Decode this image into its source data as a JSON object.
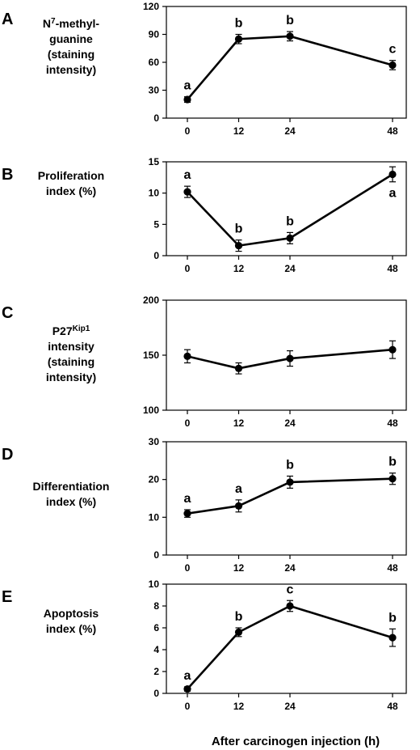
{
  "chart_data": [
    {
      "type": "line",
      "panel": "A",
      "ylabel_lines": [
        {
          "main": "N",
          "sup": "7",
          "rest": "-methyl-"
        },
        {
          "main": "guanine"
        },
        {
          "main": "(staining"
        },
        {
          "main": "intensity)"
        }
      ],
      "x": [
        0,
        12,
        24,
        48
      ],
      "x_tick_labels": [
        "0",
        "12",
        "24",
        "48"
      ],
      "ylim": [
        0,
        120
      ],
      "y_ticks": [
        0,
        30,
        60,
        90,
        120
      ],
      "values": [
        20,
        85,
        88,
        57
      ],
      "errors": [
        3,
        5,
        5,
        5
      ],
      "significance": [
        "a",
        "b",
        "b",
        "c"
      ],
      "sig_position": [
        "above",
        "above",
        "above",
        "above"
      ]
    },
    {
      "type": "line",
      "panel": "B",
      "ylabel_lines": [
        {
          "main": "Proliferation"
        },
        {
          "main": "index (%)"
        }
      ],
      "x": [
        0,
        12,
        24,
        48
      ],
      "x_tick_labels": [
        "0",
        "12",
        "24",
        "48"
      ],
      "ylim": [
        0,
        15
      ],
      "y_ticks": [
        0,
        5,
        10,
        15
      ],
      "values": [
        10.2,
        1.6,
        2.8,
        13
      ],
      "errors": [
        0.9,
        0.9,
        0.9,
        1.2
      ],
      "significance": [
        "a",
        "b",
        "b",
        "a"
      ],
      "sig_position": [
        "above",
        "above",
        "above",
        "below"
      ]
    },
    {
      "type": "line",
      "panel": "C",
      "ylabel_lines": [
        {
          "main": "P27",
          "sup": "Kip1"
        },
        {
          "main": "intensity"
        },
        {
          "main": "(staining"
        },
        {
          "main": "intensity)"
        }
      ],
      "x": [
        0,
        12,
        24,
        48
      ],
      "x_tick_labels": [
        "0",
        "12",
        "24",
        "48"
      ],
      "ylim": [
        100,
        200
      ],
      "y_ticks": [
        100,
        150,
        200
      ],
      "values": [
        149,
        138,
        147,
        155
      ],
      "errors": [
        6,
        5,
        7,
        8
      ],
      "significance": [],
      "sig_position": []
    },
    {
      "type": "line",
      "panel": "D",
      "ylabel_lines": [
        {
          "main": "Differentiation"
        },
        {
          "main": "index (%)"
        }
      ],
      "x": [
        0,
        12,
        24,
        48
      ],
      "x_tick_labels": [
        "0",
        "12",
        "24",
        "48"
      ],
      "ylim": [
        0,
        30
      ],
      "y_ticks": [
        0,
        10,
        20,
        30
      ],
      "values": [
        11,
        13,
        19.3,
        20.2
      ],
      "errors": [
        1,
        1.6,
        1.6,
        1.5
      ],
      "significance": [
        "a",
        "a",
        "b",
        "b"
      ],
      "sig_position": [
        "above",
        "above",
        "above",
        "above"
      ]
    },
    {
      "type": "line",
      "panel": "E",
      "ylabel_lines": [
        {
          "main": "Apoptosis"
        },
        {
          "main": "index (%)"
        }
      ],
      "x": [
        0,
        12,
        24,
        48
      ],
      "x_tick_labels": [
        "0",
        "12",
        "24",
        "48"
      ],
      "ylim": [
        0,
        10
      ],
      "y_ticks": [
        0,
        2,
        4,
        6,
        8,
        10
      ],
      "values": [
        0.4,
        5.6,
        8.0,
        5.1
      ],
      "errors": [
        0.2,
        0.4,
        0.5,
        0.8
      ],
      "significance": [
        "a",
        "b",
        "c",
        "b"
      ],
      "sig_position": [
        "above",
        "above",
        "above",
        "above"
      ]
    }
  ],
  "xlabel": "After carcinogen injection (h)",
  "colors": {
    "line": "#000000",
    "frame": "#000000",
    "background": "#ffffff"
  }
}
